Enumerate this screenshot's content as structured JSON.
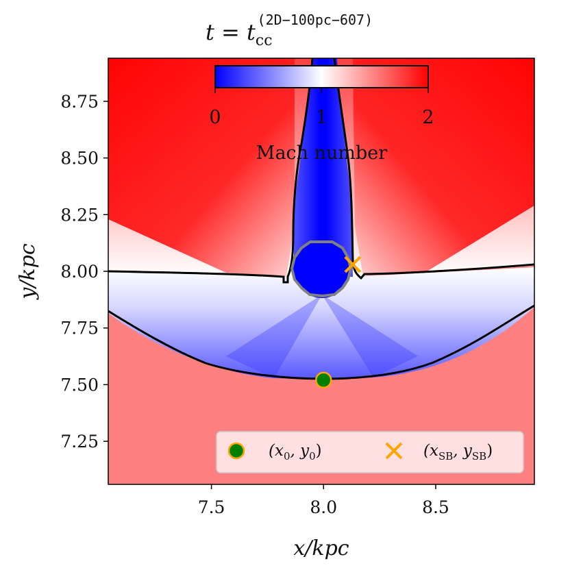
{
  "chart_data": {
    "type": "heatmap",
    "title_math": "t = t",
    "title_subscript": "cc",
    "title_superscript": "(2D−100pc−607)",
    "xlabel": "x/kpc",
    "ylabel": "y/kpc",
    "xlim": [
      7.04,
      8.94
    ],
    "ylim": [
      7.06,
      8.94
    ],
    "xticks": [
      "7.5",
      "8.0",
      "8.5"
    ],
    "xtick_values": [
      7.5,
      8.0,
      8.5
    ],
    "yticks": [
      "7.25",
      "7.50",
      "7.75",
      "8.00",
      "8.25",
      "8.50",
      "8.75"
    ],
    "ytick_values": [
      7.25,
      7.5,
      7.75,
      8.0,
      8.25,
      8.5,
      8.75
    ],
    "colorbar": {
      "label": "Mach number",
      "ticks": [
        "0",
        "1",
        "2"
      ],
      "range": [
        0,
        2
      ],
      "colormap": "bwr",
      "placement": "inset-top"
    },
    "colors": {
      "high": "#ff0000",
      "mid": "#ffffff",
      "low": "#0000ff",
      "ambient": "#ff8080",
      "contour_sonic": "#000000",
      "contour_bubble": "#808080",
      "marker_circle_fill": "#008000",
      "marker_edge": "#ffa500"
    },
    "points": [
      {
        "name": "(x0, y0)",
        "x": 8.0,
        "y": 7.52,
        "marker": "circle"
      },
      {
        "name": "(xSB, ySB)",
        "x": 8.13,
        "y": 8.03,
        "marker": "x"
      }
    ],
    "legend": {
      "placement": "lower-right",
      "entries": [
        {
          "label_main": "(x",
          "label_sub": "0",
          "label_sep": ", y",
          "label_sub2": "0",
          "label_end": ")"
        },
        {
          "label_main": "(x",
          "label_sub": "SB",
          "label_sep": ", y",
          "label_sub2": "SB",
          "label_end": ")"
        }
      ]
    }
  }
}
